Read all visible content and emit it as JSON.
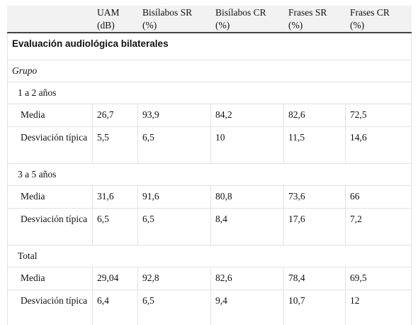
{
  "table": {
    "header": [
      {
        "label": "UAM",
        "unit": "(dB)"
      },
      {
        "label": "Bisílabos SR",
        "unit": "(%)"
      },
      {
        "label": "Bisílabos CR",
        "unit": "(%)"
      },
      {
        "label": "Frases SR",
        "unit": "(%)"
      },
      {
        "label": "Frases CR",
        "unit": "(%)"
      }
    ],
    "title": "Evaluación audiológica bilaterales",
    "subtitle": "Grupo",
    "groups": [
      {
        "label": "1 a 2 años",
        "rows": [
          {
            "label": "Media",
            "values": [
              "26,7",
              "93,9",
              "84,2",
              "82,6",
              "72,5"
            ]
          },
          {
            "label": "Desviación típica",
            "values": [
              "5,5",
              "6,5",
              "10",
              "11,5",
              "14,6"
            ]
          }
        ]
      },
      {
        "label": "3 a 5 años",
        "rows": [
          {
            "label": "Media",
            "values": [
              "31,6",
              "91,6",
              "80,8",
              "73,6",
              "66"
            ]
          },
          {
            "label": "Desviación típica",
            "values": [
              "6,5",
              "6,5",
              "8,4",
              "17,6",
              "7,2"
            ]
          }
        ]
      },
      {
        "label": "Total",
        "rows": [
          {
            "label": "Media",
            "values": [
              "29,04",
              "92,8",
              "82,6",
              "78,4",
              "69,5"
            ]
          },
          {
            "label": "Desviación típica",
            "values": [
              "6,4",
              "6,5",
              "9,4",
              "10,7",
              "12"
            ]
          }
        ]
      }
    ]
  }
}
